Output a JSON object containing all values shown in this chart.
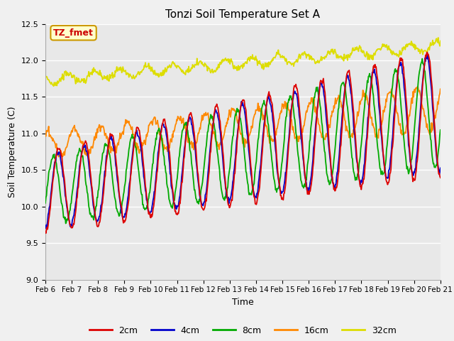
{
  "title": "Tonzi Soil Temperature Set A",
  "xlabel": "Time",
  "ylabel": "Soil Temperature (C)",
  "ylim": [
    9.0,
    12.5
  ],
  "xlim": [
    0,
    15
  ],
  "annotation_text": "TZ_fmet",
  "annotation_bg": "#ffffcc",
  "annotation_fg": "#cc0000",
  "annotation_border": "#cc9900",
  "x_tick_labels": [
    "Feb 6",
    "Feb 7",
    "Feb 8",
    "Feb 9",
    "Feb 10",
    "Feb 11",
    "Feb 12",
    "Feb 13",
    "Feb 14",
    "Feb 15",
    "Feb 16",
    "Feb 17",
    "Feb 18",
    "Feb 19",
    "Feb 20",
    "Feb 21"
  ],
  "colors": {
    "2cm": "#dd0000",
    "4cm": "#0000cc",
    "8cm": "#00aa00",
    "16cm": "#ff8800",
    "32cm": "#dddd00"
  },
  "fig_bg": "#f0f0f0",
  "plot_bg": "#e8e8e8",
  "grid_color": "#ffffff",
  "n_points": 720
}
